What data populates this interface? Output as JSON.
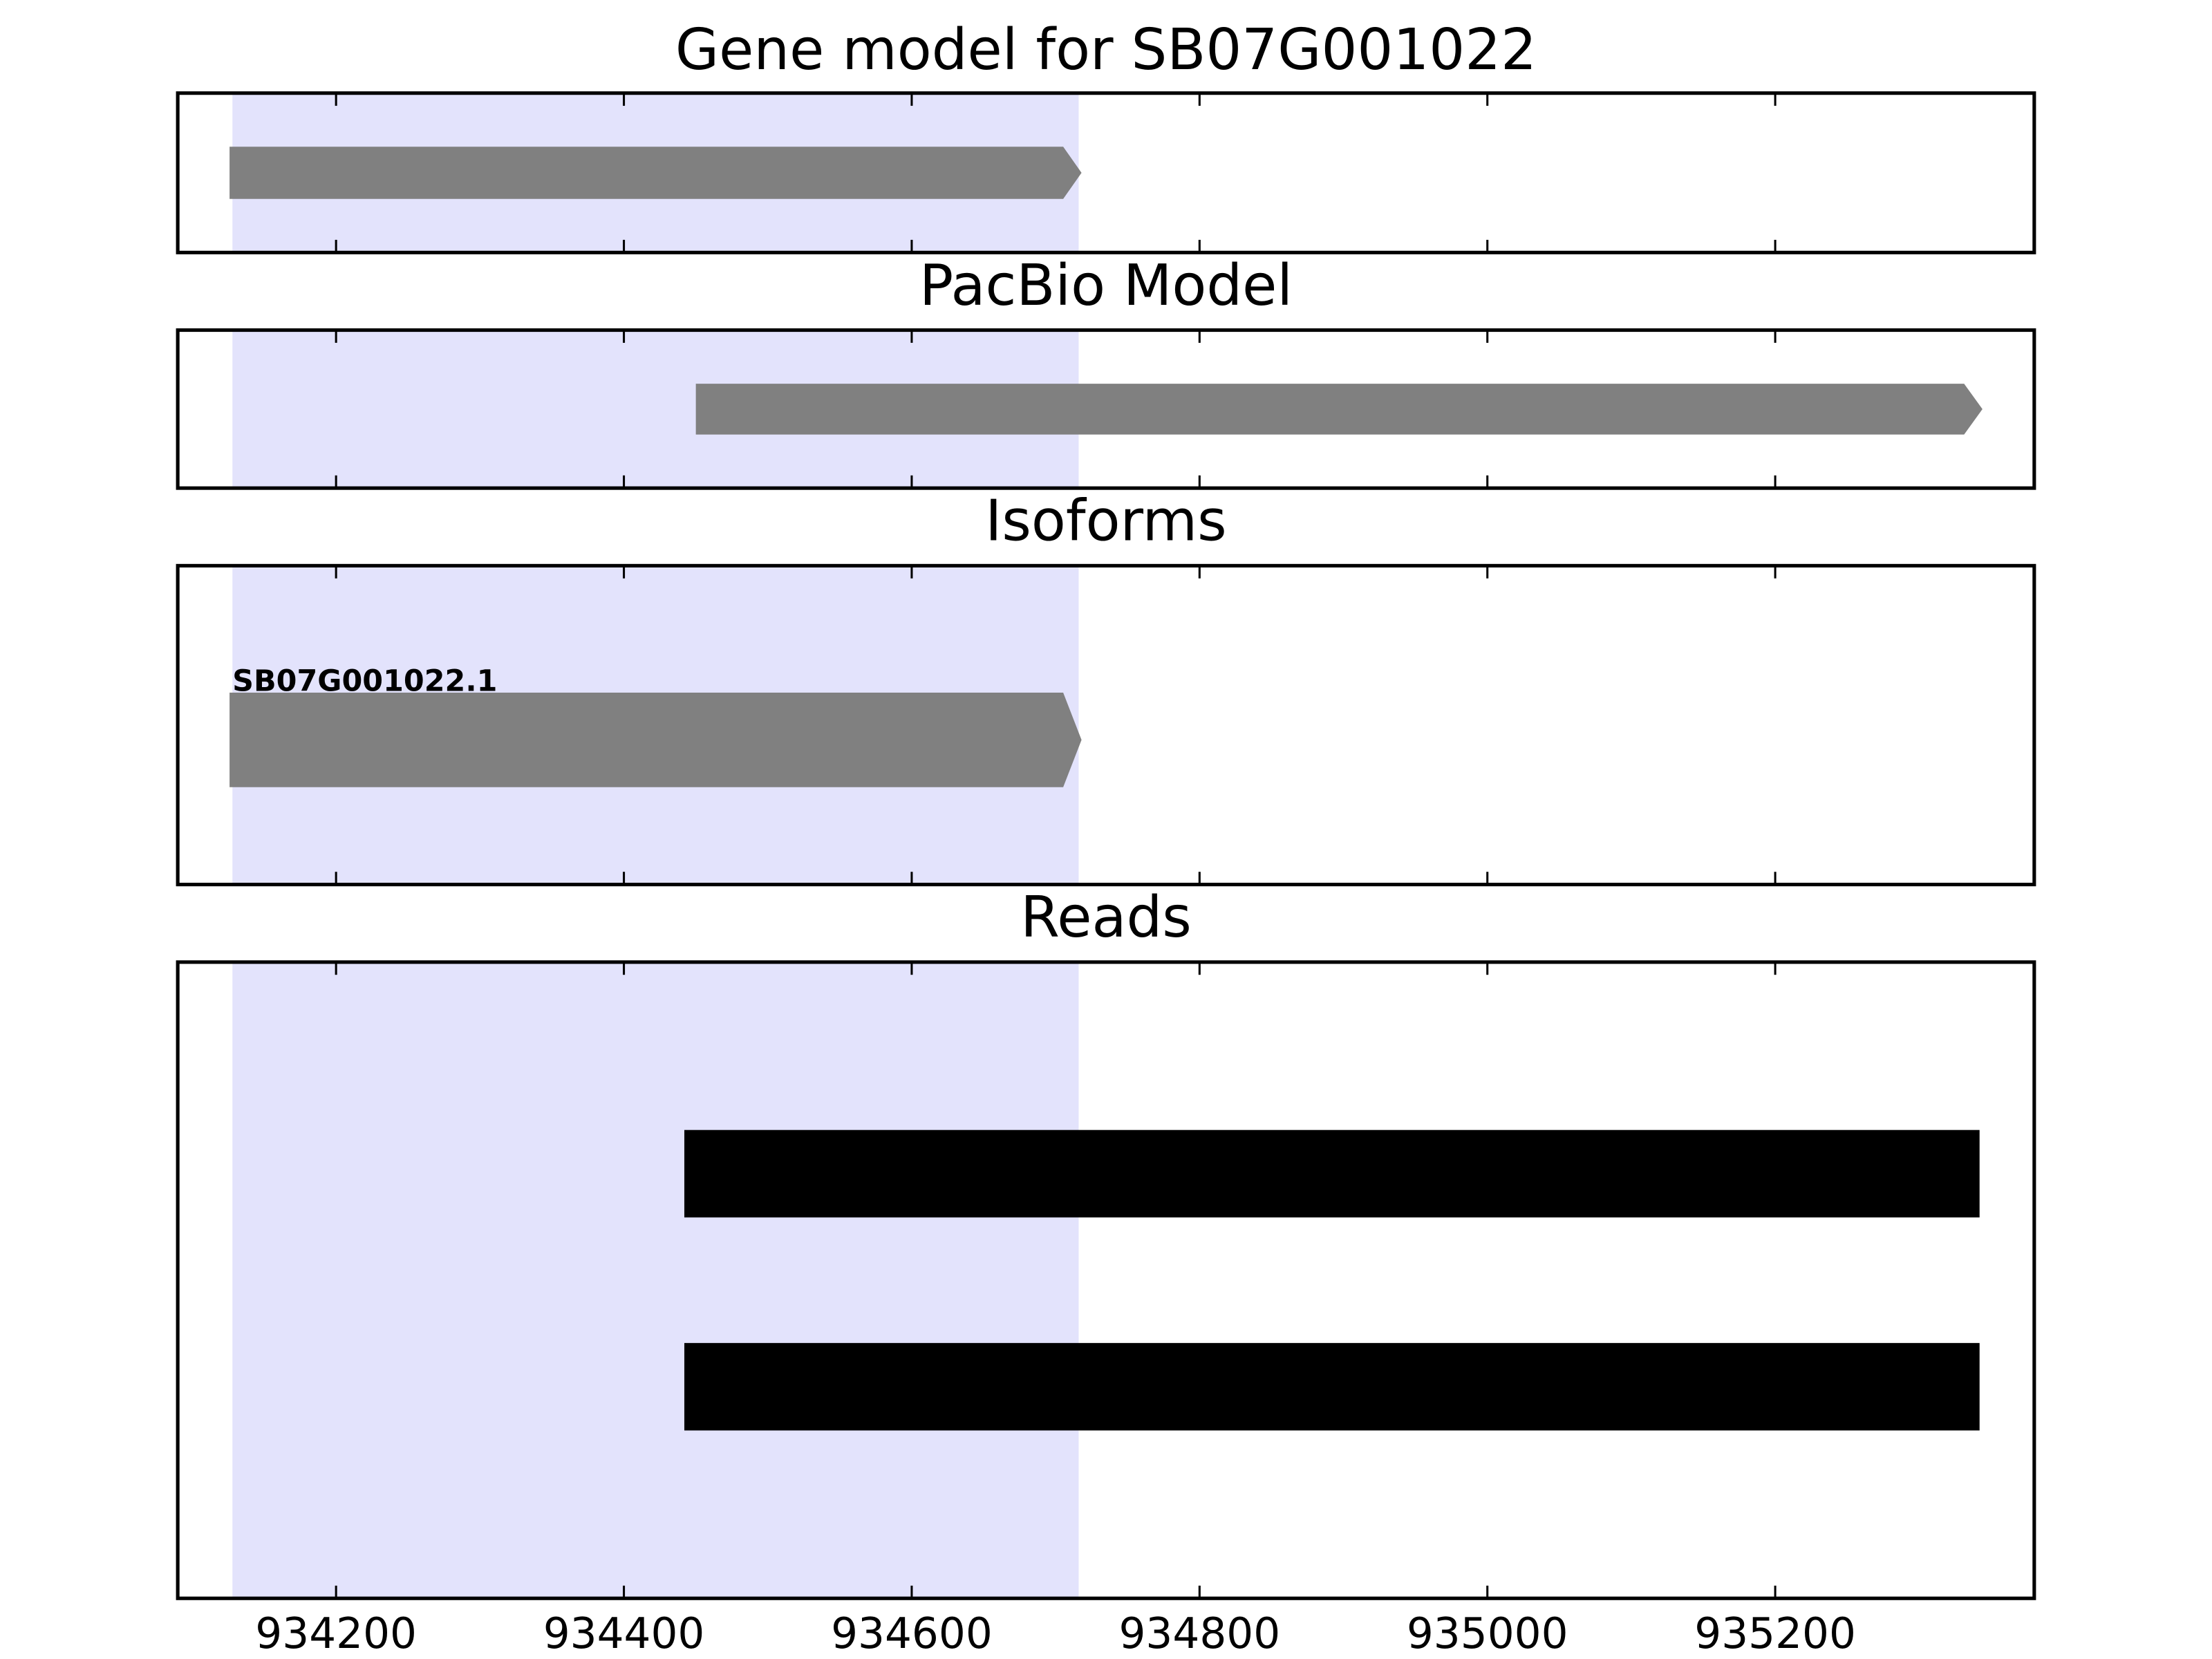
{
  "chart_data": {
    "type": "gene-tracks",
    "xlim": [
      934090,
      935380
    ],
    "xticks": [
      934200,
      934400,
      934600,
      934800,
      935000,
      935200
    ],
    "highlight": {
      "start": 934128,
      "end": 934716,
      "color": "#e3e3fc"
    },
    "panels": [
      {
        "title": "Gene model for SB07G001022",
        "features": [
          {
            "start": 934126,
            "end": 934718,
            "shape": "arrow",
            "color": "#808080"
          }
        ]
      },
      {
        "title": "PacBio Model",
        "features": [
          {
            "start": 934450,
            "end": 935344,
            "shape": "arrow",
            "color": "#808080"
          }
        ]
      },
      {
        "title": "Isoforms",
        "features": [
          {
            "label": "SB07G001022.1",
            "start": 934126,
            "end": 934718,
            "shape": "arrow",
            "color": "#808080"
          }
        ]
      },
      {
        "title": "Reads",
        "features": [
          {
            "start": 934442,
            "end": 935342,
            "shape": "rect",
            "color": "#000000"
          },
          {
            "start": 934442,
            "end": 935342,
            "shape": "rect",
            "color": "#000000"
          }
        ]
      }
    ]
  }
}
